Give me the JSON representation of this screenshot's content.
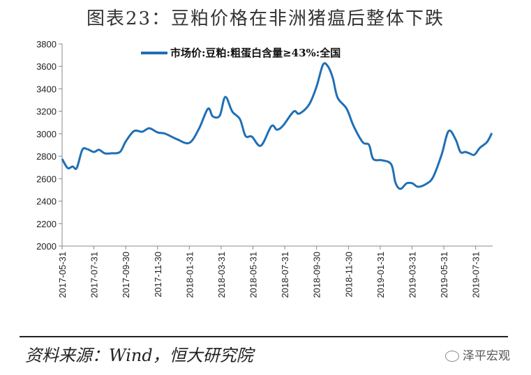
{
  "title": "图表23：豆粕价格在非洲猪瘟后整体下跌",
  "source": "资料来源：Wind，恒大研究院",
  "watermark": "泽平宏观",
  "chart_data": {
    "type": "line",
    "title": "图表23：豆粕价格在非洲猪瘟后整体下跌",
    "xlabel": "",
    "ylabel": "",
    "ylim": [
      2000,
      3800
    ],
    "yticks": [
      2000,
      2200,
      2400,
      2600,
      2800,
      3000,
      3200,
      3400,
      3600,
      3800
    ],
    "xticks": [
      "2017-05-31",
      "2017-07-31",
      "2017-09-30",
      "2017-11-30",
      "2018-01-31",
      "2018-03-31",
      "2018-05-31",
      "2018-07-31",
      "2018-09-30",
      "2018-11-30",
      "2019-01-31",
      "2019-03-31",
      "2019-05-31",
      "2019-07-31"
    ],
    "x_unit": "months since 2017-05-31",
    "xlim": [
      0,
      27.2
    ],
    "legend_position": "top-center",
    "grid": false,
    "color": "#1f6fb5",
    "series": [
      {
        "name": "市场价:豆粕:粗蛋白含量≥43%:全国",
        "x": [
          0,
          0.35,
          0.66,
          0.92,
          1.27,
          1.58,
          2,
          2.32,
          2.68,
          3.11,
          3.64,
          4,
          4.52,
          5.04,
          5.48,
          6,
          6.49,
          7.24,
          8,
          8.6,
          9.17,
          9.47,
          9.91,
          10.26,
          10.7,
          11.18,
          11.53,
          11.93,
          12.5,
          13.16,
          13.51,
          13.9,
          14.56,
          14.91,
          15.53,
          16,
          16.4,
          16.71,
          17.02,
          17.32,
          17.89,
          18.33,
          18.9,
          19.3,
          19.56,
          20.13,
          20.7,
          20.96,
          21.27,
          21.67,
          22.02,
          22.37,
          22.89,
          23.33,
          23.86,
          24.3,
          24.74,
          25.04,
          25.35,
          25.61,
          25.92,
          26.27,
          26.71,
          27.02
        ],
        "values": [
          2776,
          2695,
          2708,
          2695,
          2857,
          2863,
          2838,
          2857,
          2826,
          2826,
          2838,
          2931,
          3024,
          3018,
          3049,
          3012,
          3000,
          2950,
          2919,
          3043,
          3223,
          3155,
          3161,
          3328,
          3198,
          3130,
          2981,
          2974,
          2894,
          3068,
          3036,
          3074,
          3198,
          3179,
          3260,
          3421,
          3614,
          3601,
          3496,
          3322,
          3223,
          3068,
          2925,
          2900,
          2776,
          2764,
          2726,
          2565,
          2509,
          2559,
          2559,
          2528,
          2553,
          2615,
          2813,
          3024,
          2950,
          2838,
          2838,
          2826,
          2813,
          2875,
          2925,
          3006
        ]
      }
    ]
  }
}
